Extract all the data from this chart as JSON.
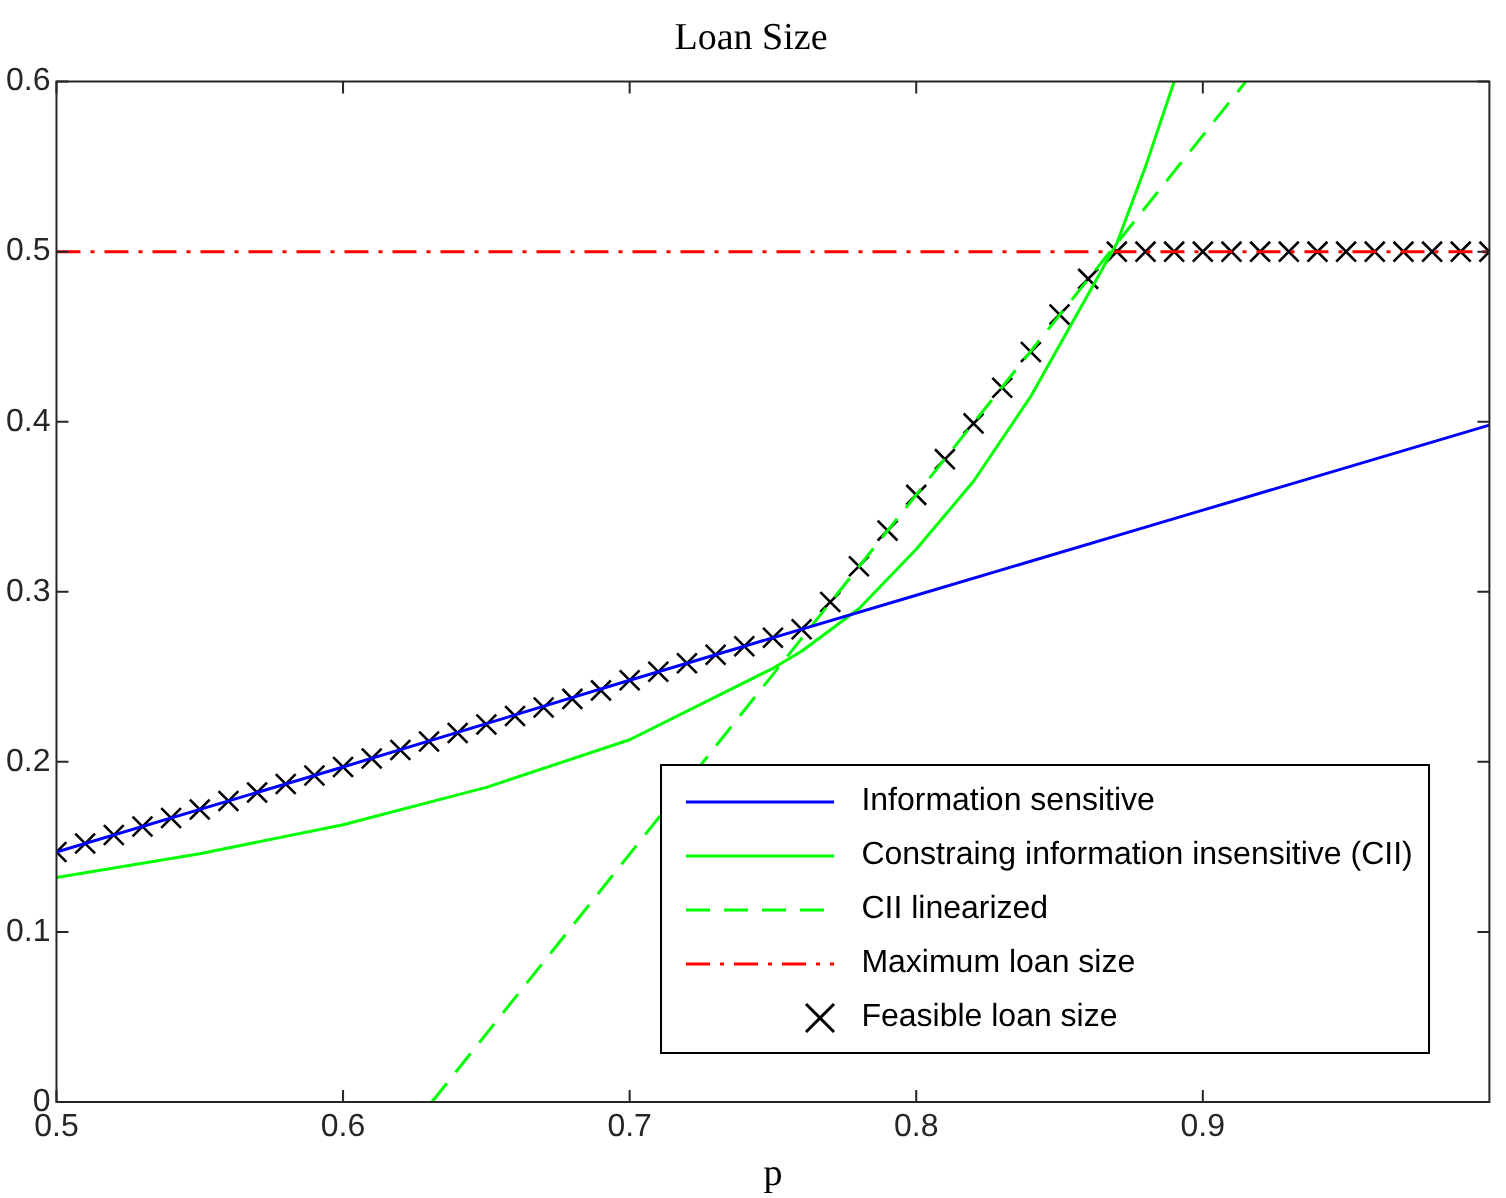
{
  "chart_data": {
    "type": "line",
    "title": "Loan Size",
    "xlabel": "p",
    "xlim": [
      0.5,
      1.0
    ],
    "xticks": [
      0.5,
      0.6,
      0.7,
      0.8,
      0.9
    ],
    "ylim": [
      0,
      0.6
    ],
    "yticks": [
      0,
      0.1,
      0.2,
      0.3,
      0.4,
      0.5,
      0.6
    ],
    "grid": false,
    "legend": "bottom right",
    "series": [
      {
        "name": "Information sensitive",
        "color": "#0000ff",
        "type": "line",
        "line_style": "solid",
        "marker": "none",
        "x": [
          0.5,
          0.6,
          0.7,
          0.8,
          0.9,
          1.0
        ],
        "values": [
          0.147,
          0.197,
          0.248,
          0.298,
          0.348,
          0.398
        ]
      },
      {
        "name": "Constraing information insensitive (CII)",
        "color": "#00ff00",
        "type": "line",
        "line_style": "solid",
        "marker": "none",
        "x": [
          0.5,
          0.55,
          0.6,
          0.65,
          0.7,
          0.75,
          0.76,
          0.78,
          0.8,
          0.82,
          0.84,
          0.86,
          0.87,
          0.88,
          0.89
        ],
        "values": [
          0.132,
          0.146,
          0.163,
          0.185,
          0.213,
          0.255,
          0.265,
          0.29,
          0.325,
          0.365,
          0.415,
          0.475,
          0.505,
          0.55,
          0.6
        ]
      },
      {
        "name": "CII linearized",
        "color": "#00ff00",
        "type": "line",
        "line_style": "dashed",
        "marker": "none",
        "x": [
          0.631,
          0.915
        ],
        "values": [
          0,
          0.6
        ]
      },
      {
        "name": "Maximum loan size",
        "color": "#ff0000",
        "type": "line",
        "line_style": "dashdot",
        "marker": "none",
        "x": [
          0.5,
          1.0
        ],
        "values": [
          0.5,
          0.5
        ]
      },
      {
        "name": "Feasible loan size",
        "color": "#000000",
        "type": "scatter",
        "marker": "cross",
        "x": [
          0.5,
          0.51,
          0.52,
          0.53,
          0.54,
          0.55,
          0.56,
          0.57,
          0.58,
          0.59,
          0.6,
          0.61,
          0.62,
          0.63,
          0.64,
          0.65,
          0.66,
          0.67,
          0.68,
          0.69,
          0.7,
          0.71,
          0.72,
          0.73,
          0.74,
          0.75,
          0.76,
          0.77,
          0.78,
          0.79,
          0.8,
          0.81,
          0.82,
          0.83,
          0.84,
          0.85,
          0.86,
          0.87,
          0.88,
          0.89,
          0.9,
          0.91,
          0.92,
          0.93,
          0.94,
          0.95,
          0.96,
          0.97,
          0.98,
          0.99,
          1.0
        ],
        "values": [
          0.147,
          0.152,
          0.157,
          0.162,
          0.167,
          0.172,
          0.177,
          0.182,
          0.187,
          0.192,
          0.197,
          0.202,
          0.207,
          0.212,
          0.217,
          0.222,
          0.227,
          0.232,
          0.237,
          0.242,
          0.248,
          0.253,
          0.258,
          0.263,
          0.268,
          0.273,
          0.278,
          0.294,
          0.315,
          0.336,
          0.357,
          0.378,
          0.399,
          0.42,
          0.441,
          0.463,
          0.484,
          0.5,
          0.5,
          0.5,
          0.5,
          0.5,
          0.5,
          0.5,
          0.5,
          0.5,
          0.5,
          0.5,
          0.5,
          0.5,
          0.5
        ]
      }
    ]
  }
}
